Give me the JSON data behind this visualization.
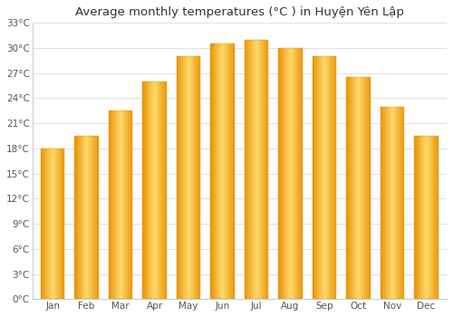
{
  "title": "Average monthly temperatures (°C ) in Huyện Yên Lập",
  "months": [
    "Jan",
    "Feb",
    "Mar",
    "Apr",
    "May",
    "Jun",
    "Jul",
    "Aug",
    "Sep",
    "Oct",
    "Nov",
    "Dec"
  ],
  "values": [
    18.0,
    19.5,
    22.5,
    26.0,
    29.0,
    30.5,
    31.0,
    30.0,
    29.0,
    26.5,
    23.0,
    19.5
  ],
  "bar_color_main": "#FDB827",
  "bar_color_light": "#FFD96A",
  "bar_color_dark": "#E8960A",
  "background_color": "#ffffff",
  "ylim": [
    0,
    33
  ],
  "yticks": [
    0,
    3,
    6,
    9,
    12,
    15,
    18,
    21,
    24,
    27,
    30,
    33
  ],
  "ytick_labels": [
    "0°C",
    "3°C",
    "6°C",
    "9°C",
    "12°C",
    "15°C",
    "18°C",
    "21°C",
    "24°C",
    "27°C",
    "30°C",
    "33°C"
  ],
  "grid_color": "#e0e0e0",
  "title_fontsize": 9.5,
  "tick_fontsize": 7.5,
  "bar_width": 0.7
}
